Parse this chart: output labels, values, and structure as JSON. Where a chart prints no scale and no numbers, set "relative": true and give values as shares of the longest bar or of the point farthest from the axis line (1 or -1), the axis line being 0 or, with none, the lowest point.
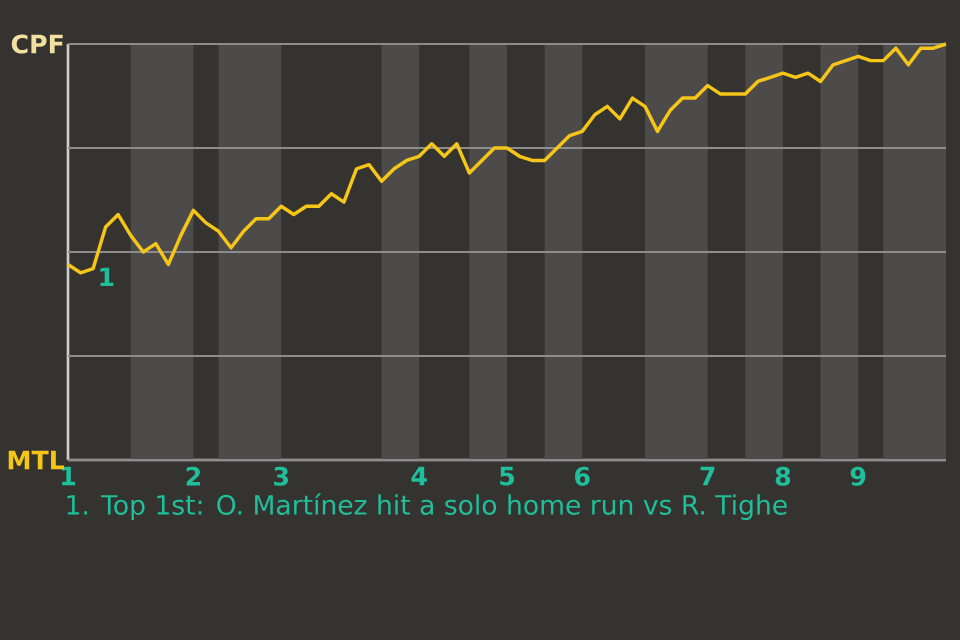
{
  "chart_data": {
    "type": "line",
    "relative": true,
    "categories": [
      "1",
      null,
      null,
      null,
      null,
      null,
      null,
      null,
      null,
      null,
      "2",
      null,
      null,
      null,
      null,
      null,
      null,
      "3",
      null,
      null,
      null,
      null,
      null,
      null,
      null,
      null,
      null,
      null,
      "4",
      null,
      null,
      null,
      null,
      null,
      null,
      "5",
      null,
      null,
      null,
      null,
      null,
      "6",
      null,
      null,
      null,
      null,
      null,
      null,
      null,
      null,
      null,
      "7",
      null,
      null,
      null,
      null,
      null,
      "8",
      null,
      null,
      null,
      null,
      null,
      "9",
      null,
      null,
      null,
      null,
      null,
      null,
      null
    ],
    "series": [
      {
        "color": "#f5c518",
        "values": [
          0.47,
          0.45,
          0.46,
          0.56,
          0.59,
          0.54,
          0.5,
          0.52,
          0.47,
          0.54,
          0.6,
          0.57,
          0.55,
          0.51,
          0.55,
          0.58,
          0.58,
          0.61,
          0.59,
          0.61,
          0.61,
          0.64,
          0.62,
          0.7,
          0.71,
          0.67,
          0.7,
          0.72,
          0.73,
          0.76,
          0.73,
          0.76,
          0.69,
          0.72,
          0.75,
          0.75,
          0.73,
          0.72,
          0.72,
          0.75,
          0.78,
          0.79,
          0.83,
          0.85,
          0.82,
          0.87,
          0.85,
          0.79,
          0.84,
          0.87,
          0.87,
          0.9,
          0.88,
          0.88,
          0.88,
          0.91,
          0.92,
          0.93,
          0.92,
          0.93,
          0.91,
          0.95,
          0.96,
          0.97,
          0.96,
          0.96,
          0.99,
          0.95,
          0.99,
          0.99,
          1.0
        ]
      }
    ],
    "grid": "y",
    "marker": "none",
    "line_style": "solid",
    "annotations": [
      "CPF",
      "MTL",
      "1",
      "1. Top 1st: O. Martínez hit a solo home run vs R. Tighe"
    ]
  }
}
